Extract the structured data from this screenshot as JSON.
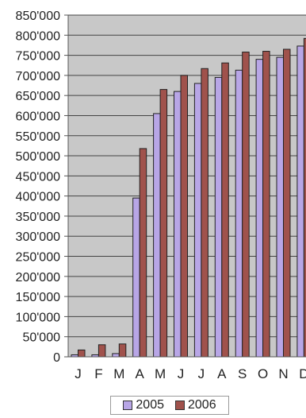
{
  "chart_data": {
    "type": "bar",
    "categories": [
      "J",
      "F",
      "M",
      "A",
      "M",
      "J",
      "J",
      "A",
      "S",
      "O",
      "N",
      "D"
    ],
    "series": [
      {
        "name": "2005",
        "color": "#b8a6e6",
        "values": [
          5000,
          5000,
          8000,
          395000,
          605000,
          660000,
          680000,
          695000,
          713000,
          740000,
          745000,
          773000
        ]
      },
      {
        "name": "2006",
        "color": "#a0524c",
        "values": [
          17000,
          30000,
          32000,
          518000,
          665000,
          700000,
          717000,
          731000,
          758000,
          760000,
          765000,
          792000
        ]
      }
    ],
    "yticks": [
      "0",
      "50'000",
      "100'000",
      "150'000",
      "200'000",
      "250'000",
      "300'000",
      "350'000",
      "400'000",
      "450'000",
      "500'000",
      "550'000",
      "600'000",
      "650'000",
      "700'000",
      "750'000",
      "800'000",
      "850'000"
    ],
    "ylim": [
      0,
      850000
    ],
    "grid": true,
    "legend": "bottom",
    "plot_background": "#c8c8c8"
  }
}
